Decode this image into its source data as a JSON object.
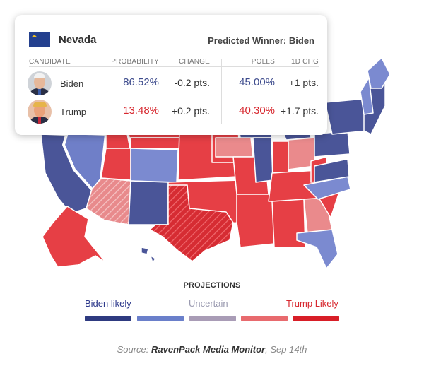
{
  "card": {
    "state": "Nevada",
    "predicted_winner": "Predicted Winner: Biden",
    "headers": {
      "candidate": "CANDIDATE",
      "probability": "PROBABILITY",
      "change": "CHANGE",
      "polls": "POLLS",
      "one_day_change": "1D CHG"
    },
    "rows": [
      {
        "name": "Biden",
        "probability": "86.52%",
        "change": "-0.2 pts.",
        "polls": "45.00%",
        "one_day_change": "+1 pts.",
        "color": "#3c4a8c"
      },
      {
        "name": "Trump",
        "probability": "13.48%",
        "change": "+0.2 pts.",
        "polls": "40.30%",
        "one_day_change": "+1.7 pts.",
        "color": "#d7282f"
      }
    ]
  },
  "legend": {
    "title": "PROJECTIONS",
    "biden_label": "Biden likely",
    "uncertain_label": "Uncertain",
    "trump_label": "Trump Likely",
    "colors": [
      "#2e3a80",
      "#6a7fca",
      "#a99cb6",
      "#e86a6e",
      "#d81e27"
    ]
  },
  "source": {
    "prefix": "Source: ",
    "name": "RavenPack Media Monitor",
    "suffix": ", Sep 14th"
  },
  "map_colors": {
    "biden_likely": "#4a5598",
    "biden_lean": "#7b8ad0",
    "trump_lean": "#ea8a8c",
    "trump_likely": "#e63f45",
    "highlight_border": "#ffffff"
  }
}
